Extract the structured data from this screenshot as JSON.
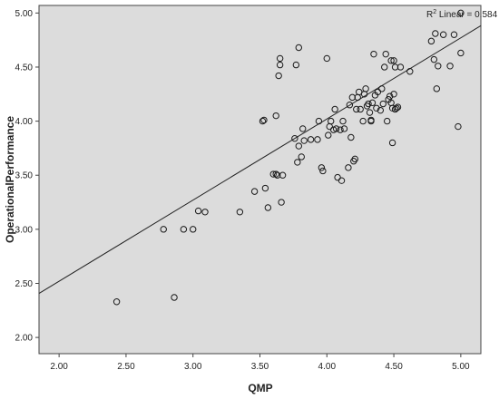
{
  "chart_data": {
    "type": "scatter",
    "xlabel": "QMP",
    "ylabel": "OperationalPerformance",
    "xlim": [
      1.85,
      5.15
    ],
    "ylim": [
      1.85,
      5.07
    ],
    "xticks": [
      "2.00",
      "2.50",
      "3.00",
      "3.50",
      "4.00",
      "4.50",
      "5.00"
    ],
    "yticks": [
      "2.00",
      "2.50",
      "3.00",
      "3.50",
      "4.00",
      "4.50",
      "5.00"
    ],
    "fit_label": "R² Linear = 0.584",
    "fit_line": {
      "slope": 0.75,
      "intercept": 1.02
    },
    "grid": false,
    "colors": {
      "plot_background": "#dcdcdc",
      "marker_stroke": "#1a1a1a",
      "fit_line": "#222222"
    },
    "points": [
      [
        2.43,
        2.33
      ],
      [
        2.78,
        3.0
      ],
      [
        2.86,
        2.37
      ],
      [
        2.93,
        3.0
      ],
      [
        3.0,
        3.0
      ],
      [
        3.04,
        3.17
      ],
      [
        3.09,
        3.16
      ],
      [
        3.35,
        3.16
      ],
      [
        3.46,
        3.35
      ],
      [
        3.52,
        4.0
      ],
      [
        3.53,
        4.01
      ],
      [
        3.54,
        3.38
      ],
      [
        3.56,
        3.2
      ],
      [
        3.6,
        3.51
      ],
      [
        3.62,
        3.51
      ],
      [
        3.62,
        4.05
      ],
      [
        3.63,
        3.5
      ],
      [
        3.64,
        4.42
      ],
      [
        3.65,
        4.52
      ],
      [
        3.65,
        4.58
      ],
      [
        3.66,
        3.25
      ],
      [
        3.67,
        3.5
      ],
      [
        3.76,
        3.84
      ],
      [
        3.77,
        4.52
      ],
      [
        3.78,
        3.62
      ],
      [
        3.79,
        3.77
      ],
      [
        3.79,
        4.68
      ],
      [
        3.81,
        3.67
      ],
      [
        3.82,
        3.93
      ],
      [
        3.83,
        3.82
      ],
      [
        3.88,
        3.83
      ],
      [
        3.93,
        3.83
      ],
      [
        3.94,
        4.0
      ],
      [
        3.96,
        3.57
      ],
      [
        3.97,
        3.54
      ],
      [
        4.0,
        4.58
      ],
      [
        4.01,
        3.87
      ],
      [
        4.02,
        3.95
      ],
      [
        4.03,
        4.0
      ],
      [
        4.05,
        3.92
      ],
      [
        4.06,
        4.11
      ],
      [
        4.07,
        3.93
      ],
      [
        4.08,
        3.48
      ],
      [
        4.1,
        3.92
      ],
      [
        4.11,
        3.45
      ],
      [
        4.12,
        4.0
      ],
      [
        4.13,
        3.93
      ],
      [
        4.16,
        3.57
      ],
      [
        4.17,
        4.15
      ],
      [
        4.18,
        3.85
      ],
      [
        4.19,
        4.22
      ],
      [
        4.2,
        3.63
      ],
      [
        4.21,
        3.65
      ],
      [
        4.22,
        4.11
      ],
      [
        4.23,
        4.22
      ],
      [
        4.24,
        4.27
      ],
      [
        4.25,
        4.11
      ],
      [
        4.27,
        4.0
      ],
      [
        4.28,
        4.25
      ],
      [
        4.29,
        4.3
      ],
      [
        4.3,
        4.14
      ],
      [
        4.31,
        4.16
      ],
      [
        4.32,
        4.08
      ],
      [
        4.33,
        4.0
      ],
      [
        4.33,
        4.01
      ],
      [
        4.34,
        4.17
      ],
      [
        4.35,
        4.62
      ],
      [
        4.36,
        4.24
      ],
      [
        4.37,
        4.12
      ],
      [
        4.38,
        4.27
      ],
      [
        4.4,
        4.1
      ],
      [
        4.41,
        4.3
      ],
      [
        4.42,
        4.16
      ],
      [
        4.43,
        4.5
      ],
      [
        4.44,
        4.62
      ],
      [
        4.45,
        4.0
      ],
      [
        4.46,
        4.2
      ],
      [
        4.47,
        4.23
      ],
      [
        4.48,
        4.17
      ],
      [
        4.48,
        4.56
      ],
      [
        4.49,
        3.8
      ],
      [
        4.49,
        4.12
      ],
      [
        4.5,
        4.25
      ],
      [
        4.5,
        4.56
      ],
      [
        4.51,
        4.11
      ],
      [
        4.51,
        4.5
      ],
      [
        4.52,
        4.12
      ],
      [
        4.53,
        4.13
      ],
      [
        4.55,
        4.5
      ],
      [
        4.62,
        4.46
      ],
      [
        4.78,
        4.74
      ],
      [
        4.8,
        4.57
      ],
      [
        4.81,
        4.81
      ],
      [
        4.82,
        4.3
      ],
      [
        4.83,
        4.51
      ],
      [
        4.87,
        4.8
      ],
      [
        4.92,
        4.51
      ],
      [
        4.95,
        4.8
      ],
      [
        4.98,
        3.95
      ],
      [
        5.0,
        4.63
      ],
      [
        5.0,
        5.0
      ]
    ]
  }
}
